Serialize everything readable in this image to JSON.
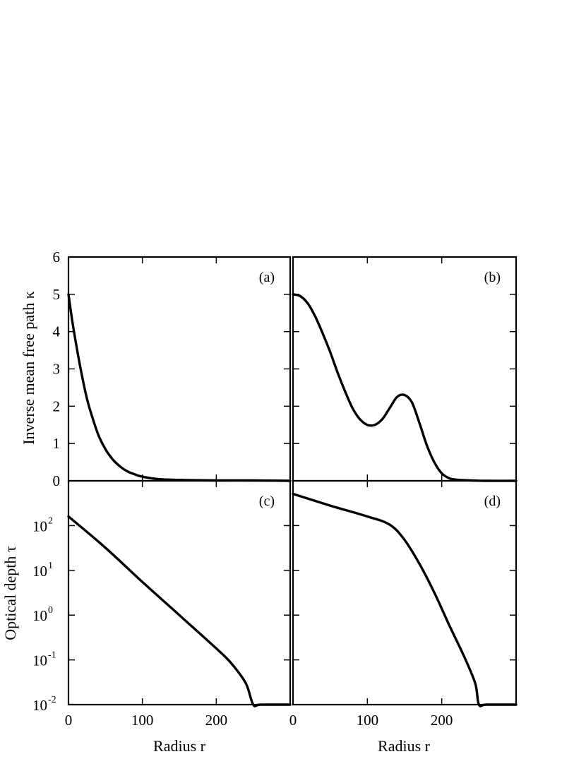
{
  "chart_data": [
    {
      "type": "line",
      "panel": "(a)",
      "ylabel": "Inverse mean free path κ",
      "xlim": [
        0,
        300
      ],
      "ylim": [
        0,
        6
      ],
      "yscale": "linear",
      "yticks": [
        "0",
        "1",
        "2",
        "3",
        "4",
        "5",
        "6"
      ],
      "x": [
        0,
        5,
        10,
        15,
        20,
        25,
        30,
        40,
        50,
        60,
        70,
        80,
        90,
        100,
        120,
        140,
        160,
        200,
        250,
        300
      ],
      "series": [
        {
          "values": [
            5.0,
            4.3,
            3.7,
            3.15,
            2.65,
            2.2,
            1.85,
            1.25,
            0.85,
            0.57,
            0.38,
            0.25,
            0.17,
            0.11,
            0.05,
            0.03,
            0.02,
            0.01,
            0.01,
            0.0
          ]
        }
      ]
    },
    {
      "type": "line",
      "panel": "(b)",
      "xlim": [
        0,
        300
      ],
      "ylim": [
        0,
        6
      ],
      "yscale": "linear",
      "x": [
        0,
        10,
        20,
        30,
        40,
        50,
        60,
        70,
        80,
        90,
        100,
        110,
        120,
        130,
        140,
        150,
        160,
        170,
        180,
        190,
        200,
        210,
        220,
        240,
        260,
        300
      ],
      "series": [
        {
          "values": [
            5.0,
            4.95,
            4.75,
            4.4,
            3.95,
            3.45,
            2.9,
            2.4,
            1.95,
            1.65,
            1.5,
            1.5,
            1.65,
            1.95,
            2.25,
            2.3,
            2.1,
            1.55,
            0.95,
            0.5,
            0.2,
            0.07,
            0.03,
            0.01,
            0.0,
            0.0
          ]
        }
      ]
    },
    {
      "type": "line",
      "panel": "(c)",
      "ylabel": "Optical depth τ",
      "xlabel": "Radius r",
      "xlim": [
        0,
        300
      ],
      "xticks": [
        "0",
        "100",
        "200"
      ],
      "ylim": [
        0.01,
        1000
      ],
      "yscale": "log",
      "yticks": [
        "10^-2",
        "10^-1",
        "10^0",
        "10^1",
        "10^2"
      ],
      "x": [
        0,
        50,
        100,
        150,
        200,
        220,
        240,
        250,
        260,
        300
      ],
      "series": [
        {
          "values": [
            160,
            32,
            5.5,
            1.0,
            0.18,
            0.085,
            0.03,
            0.01,
            0.01,
            0.01
          ]
        }
      ]
    },
    {
      "type": "line",
      "panel": "(d)",
      "xlabel": "Radius r",
      "xlim": [
        0,
        300
      ],
      "xticks": [
        "0",
        "100",
        "200"
      ],
      "ylim": [
        0.01,
        1000
      ],
      "yscale": "log",
      "x": [
        0,
        50,
        100,
        130,
        150,
        170,
        190,
        210,
        230,
        245,
        250,
        260,
        300
      ],
      "series": [
        {
          "values": [
            510,
            280,
            160,
            105,
            48,
            14,
            3.2,
            0.6,
            0.12,
            0.03,
            0.01,
            0.01,
            0.01
          ]
        }
      ]
    }
  ]
}
